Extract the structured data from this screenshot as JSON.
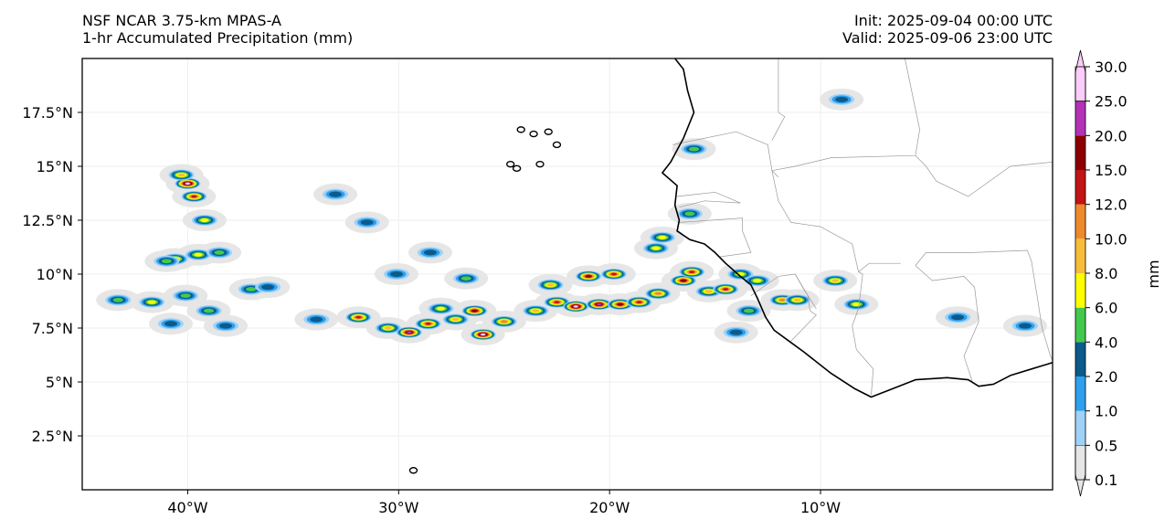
{
  "header": {
    "model_line": "NSF NCAR 3.75-km MPAS-A",
    "field_line": "1-hr Accumulated Precipitation (mm)",
    "init_line": "Init: 2025-09-04 00:00 UTC",
    "valid_line": "Valid: 2025-09-06 23:00 UTC"
  },
  "map": {
    "projection": "PlateCarree",
    "lon_range": [
      -45,
      1
    ],
    "lat_range": [
      0,
      20
    ],
    "x_ticks": [
      {
        "value": -40,
        "label": "40°W"
      },
      {
        "value": -30,
        "label": "30°W"
      },
      {
        "value": -20,
        "label": "20°W"
      },
      {
        "value": -10,
        "label": "10°W"
      }
    ],
    "y_ticks": [
      {
        "value": 2.5,
        "label": "2.5°N"
      },
      {
        "value": 5,
        "label": "5°N"
      },
      {
        "value": 7.5,
        "label": "7.5°N"
      },
      {
        "value": 10,
        "label": "10°N"
      },
      {
        "value": 12.5,
        "label": "12.5°N"
      },
      {
        "value": 15,
        "label": "15°N"
      },
      {
        "value": 17.5,
        "label": "17.5°N"
      }
    ],
    "grid": true,
    "coastline": [
      [
        -16.9,
        20.0
      ],
      [
        -16.5,
        19.5
      ],
      [
        -16.3,
        18.5
      ],
      [
        -16.0,
        17.5
      ],
      [
        -16.5,
        16.3
      ],
      [
        -17.1,
        15.2
      ],
      [
        -17.5,
        14.7
      ],
      [
        -16.8,
        14.1
      ],
      [
        -16.9,
        13.2
      ],
      [
        -16.7,
        12.5
      ],
      [
        -16.8,
        12.0
      ],
      [
        -16.2,
        11.6
      ],
      [
        -15.5,
        11.4
      ],
      [
        -15.0,
        11.0
      ],
      [
        -14.5,
        10.5
      ],
      [
        -13.8,
        9.9
      ],
      [
        -13.3,
        9.5
      ],
      [
        -13.0,
        8.9
      ],
      [
        -12.6,
        8.0
      ],
      [
        -12.2,
        7.4
      ],
      [
        -11.5,
        6.9
      ],
      [
        -10.8,
        6.4
      ],
      [
        -9.5,
        5.4
      ],
      [
        -8.4,
        4.7
      ],
      [
        -7.6,
        4.3
      ],
      [
        -6.8,
        4.6
      ],
      [
        -5.5,
        5.1
      ],
      [
        -4.0,
        5.2
      ],
      [
        -3.0,
        5.1
      ],
      [
        -2.5,
        4.8
      ],
      [
        -1.8,
        4.9
      ],
      [
        -1.0,
        5.3
      ],
      [
        0.0,
        5.6
      ],
      [
        1.0,
        5.9
      ]
    ],
    "islands": [
      {
        "lon": -24.2,
        "lat": 16.7
      },
      {
        "lon": -23.6,
        "lat": 16.5
      },
      {
        "lon": -22.9,
        "lat": 16.6
      },
      {
        "lon": -22.5,
        "lat": 16.0
      },
      {
        "lon": -23.3,
        "lat": 15.1
      },
      {
        "lon": -24.4,
        "lat": 14.9
      },
      {
        "lon": -24.7,
        "lat": 15.1
      },
      {
        "lon": -29.3,
        "lat": 0.9
      }
    ],
    "borders": [
      [
        [
          -17.0,
          16.0
        ],
        [
          -14.0,
          16.6
        ],
        [
          -12.5,
          16.0
        ],
        [
          -12.3,
          14.8
        ],
        [
          -12.0,
          14.5
        ]
      ],
      [
        [
          -12.3,
          14.8
        ],
        [
          -12.0,
          13.4
        ],
        [
          -11.4,
          12.4
        ],
        [
          -10.0,
          12.2
        ],
        [
          -8.5,
          11.4
        ],
        [
          -8.2,
          10.1
        ],
        [
          -7.7,
          10.5
        ],
        [
          -6.2,
          10.5
        ]
      ],
      [
        [
          -16.8,
          13.6
        ],
        [
          -15.0,
          13.8
        ],
        [
          -13.8,
          13.3
        ],
        [
          -15.5,
          13.4
        ],
        [
          -16.7,
          13.1
        ]
      ],
      [
        [
          -16.7,
          12.4
        ],
        [
          -13.7,
          12.6
        ],
        [
          -13.7,
          12.0
        ],
        [
          -13.3,
          11.0
        ],
        [
          -14.8,
          10.8
        ]
      ],
      [
        [
          -13.3,
          9.0
        ],
        [
          -12.0,
          9.9
        ],
        [
          -11.2,
          10.0
        ],
        [
          -10.6,
          9.0
        ],
        [
          -10.5,
          8.3
        ],
        [
          -10.2,
          8.1
        ],
        [
          -11.4,
          6.9
        ]
      ],
      [
        [
          -11.2,
          10.0
        ],
        [
          -10.8,
          9.3
        ],
        [
          -10.2,
          8.4
        ]
      ],
      [
        [
          -8.5,
          7.6
        ],
        [
          -8.3,
          6.5
        ],
        [
          -7.5,
          5.6
        ],
        [
          -7.6,
          4.4
        ]
      ],
      [
        [
          -8.5,
          7.6
        ],
        [
          -8.2,
          8.4
        ],
        [
          -8.0,
          10.0
        ],
        [
          -8.2,
          10.1
        ]
      ],
      [
        [
          -5.5,
          10.4
        ],
        [
          -4.7,
          9.7
        ],
        [
          -3.2,
          9.9
        ],
        [
          -2.7,
          9.4
        ],
        [
          -2.5,
          7.8
        ],
        [
          -3.2,
          6.2
        ],
        [
          -2.8,
          5.0
        ]
      ],
      [
        [
          -5.5,
          10.4
        ],
        [
          -5.0,
          11.0
        ],
        [
          -2.8,
          11.0
        ],
        [
          -0.2,
          11.1
        ],
        [
          0.0,
          10.6
        ],
        [
          0.3,
          8.8
        ],
        [
          0.5,
          7.5
        ],
        [
          0.9,
          6.2
        ],
        [
          1.0,
          6.0
        ]
      ],
      [
        [
          -12.3,
          14.8
        ],
        [
          -11.2,
          15.0
        ],
        [
          -9.5,
          15.4
        ],
        [
          -5.5,
          15.5
        ],
        [
          -5.3,
          16.7
        ],
        [
          -6.0,
          20.0
        ]
      ],
      [
        [
          -5.5,
          15.5
        ],
        [
          -5.0,
          15.0
        ],
        [
          -4.5,
          14.3
        ],
        [
          -3.0,
          13.6
        ],
        [
          -1.0,
          15.0
        ],
        [
          1.0,
          15.2
        ]
      ],
      [
        [
          -12.0,
          20.0
        ],
        [
          -12.0,
          17.5
        ],
        [
          -11.7,
          17.3
        ],
        [
          -12.3,
          16.2
        ]
      ]
    ]
  },
  "precip_cells": [
    {
      "lon": -40.0,
      "lat": 14.2,
      "mm": 25
    },
    {
      "lon": -39.7,
      "lat": 13.6,
      "mm": 12
    },
    {
      "lon": -40.3,
      "lat": 14.6,
      "mm": 8
    },
    {
      "lon": -39.2,
      "lat": 12.5,
      "mm": 6
    },
    {
      "lon": -40.6,
      "lat": 10.7,
      "mm": 8
    },
    {
      "lon": -39.5,
      "lat": 10.9,
      "mm": 6
    },
    {
      "lon": -41.0,
      "lat": 10.6,
      "mm": 4
    },
    {
      "lon": -38.5,
      "lat": 11.0,
      "mm": 4
    },
    {
      "lon": -43.3,
      "lat": 8.8,
      "mm": 4
    },
    {
      "lon": -41.7,
      "lat": 8.7,
      "mm": 6
    },
    {
      "lon": -40.1,
      "lat": 9.0,
      "mm": 4
    },
    {
      "lon": -39.0,
      "lat": 8.3,
      "mm": 4
    },
    {
      "lon": -37.0,
      "lat": 9.3,
      "mm": 4
    },
    {
      "lon": -36.2,
      "lat": 9.4,
      "mm": 3
    },
    {
      "lon": -40.8,
      "lat": 7.7,
      "mm": 3
    },
    {
      "lon": -38.2,
      "lat": 7.6,
      "mm": 3
    },
    {
      "lon": -33.9,
      "lat": 7.9,
      "mm": 2
    },
    {
      "lon": -31.9,
      "lat": 8.0,
      "mm": 12
    },
    {
      "lon": -30.5,
      "lat": 7.5,
      "mm": 8
    },
    {
      "lon": -29.5,
      "lat": 7.3,
      "mm": 20
    },
    {
      "lon": -28.6,
      "lat": 7.7,
      "mm": 12
    },
    {
      "lon": -27.3,
      "lat": 7.9,
      "mm": 8
    },
    {
      "lon": -26.4,
      "lat": 8.3,
      "mm": 15
    },
    {
      "lon": -26.0,
      "lat": 7.2,
      "mm": 25
    },
    {
      "lon": -25.0,
      "lat": 7.8,
      "mm": 10
    },
    {
      "lon": -28.0,
      "lat": 8.4,
      "mm": 6
    },
    {
      "lon": -30.1,
      "lat": 10.0,
      "mm": 3
    },
    {
      "lon": -28.5,
      "lat": 11.0,
      "mm": 3
    },
    {
      "lon": -26.8,
      "lat": 9.8,
      "mm": 4
    },
    {
      "lon": -33.0,
      "lat": 13.7,
      "mm": 2
    },
    {
      "lon": -31.5,
      "lat": 12.4,
      "mm": 3
    },
    {
      "lon": -23.5,
      "lat": 8.3,
      "mm": 8
    },
    {
      "lon": -22.5,
      "lat": 8.7,
      "mm": 12
    },
    {
      "lon": -21.6,
      "lat": 8.5,
      "mm": 25
    },
    {
      "lon": -20.5,
      "lat": 8.6,
      "mm": 20
    },
    {
      "lon": -19.5,
      "lat": 8.6,
      "mm": 15
    },
    {
      "lon": -18.6,
      "lat": 8.7,
      "mm": 12
    },
    {
      "lon": -21.0,
      "lat": 9.9,
      "mm": 15
    },
    {
      "lon": -19.8,
      "lat": 10.0,
      "mm": 12
    },
    {
      "lon": -22.8,
      "lat": 9.5,
      "mm": 8
    },
    {
      "lon": -17.7,
      "lat": 9.1,
      "mm": 10
    },
    {
      "lon": -16.5,
      "lat": 9.7,
      "mm": 15
    },
    {
      "lon": -16.1,
      "lat": 10.1,
      "mm": 12
    },
    {
      "lon": -15.3,
      "lat": 9.2,
      "mm": 8
    },
    {
      "lon": -14.5,
      "lat": 9.3,
      "mm": 12
    },
    {
      "lon": -13.8,
      "lat": 10.0,
      "mm": 6
    },
    {
      "lon": -13.0,
      "lat": 9.7,
      "mm": 6
    },
    {
      "lon": -11.8,
      "lat": 8.8,
      "mm": 10
    },
    {
      "lon": -11.1,
      "lat": 8.8,
      "mm": 8
    },
    {
      "lon": -9.3,
      "lat": 9.7,
      "mm": 8
    },
    {
      "lon": -8.3,
      "lat": 8.6,
      "mm": 6
    },
    {
      "lon": -16.0,
      "lat": 15.8,
      "mm": 4
    },
    {
      "lon": -16.2,
      "lat": 12.8,
      "mm": 4
    },
    {
      "lon": -17.5,
      "lat": 11.7,
      "mm": 6
    },
    {
      "lon": -17.8,
      "lat": 11.2,
      "mm": 6
    },
    {
      "lon": -13.4,
      "lat": 8.3,
      "mm": 4
    },
    {
      "lon": -14.0,
      "lat": 7.3,
      "mm": 3
    },
    {
      "lon": -9.0,
      "lat": 18.1,
      "mm": 2
    },
    {
      "lon": -3.5,
      "lat": 8.0,
      "mm": 2
    },
    {
      "lon": -0.3,
      "lat": 7.6,
      "mm": 2
    }
  ],
  "colorbar": {
    "unit_label": "mm",
    "levels": [
      "0.1",
      "0.5",
      "1.0",
      "2.0",
      "4.0",
      "6.0",
      "8.0",
      "10.0",
      "12.0",
      "15.0",
      "20.0",
      "25.0",
      "30.0"
    ],
    "colors": [
      "#e6e6e6",
      "#9fd2f7",
      "#2ea0ee",
      "#0a5a8b",
      "#43c94d",
      "#ffff00",
      "#f7bd3a",
      "#ed8b2c",
      "#c11414",
      "#8c0000",
      "#b332b5",
      "#fbcdfa"
    ],
    "extend": "both"
  },
  "colors": {
    "no_precip_haze": "#e6e6e6",
    "coastline": "#000000",
    "border": "#9a9a9a",
    "grid": "#eeeeee"
  }
}
